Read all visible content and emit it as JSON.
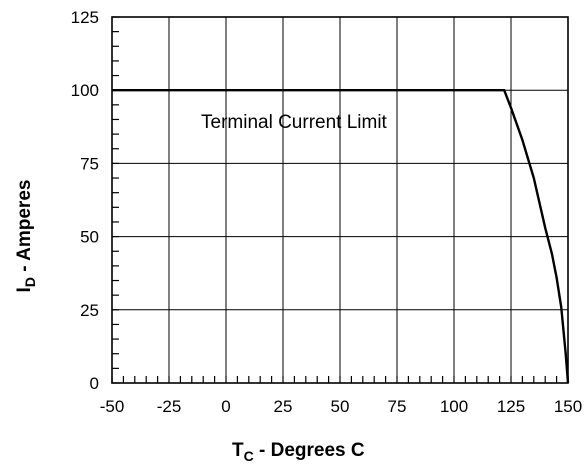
{
  "chart_data": {
    "type": "line",
    "xlabel": {
      "main": "T",
      "sub": "C",
      "rest": " - Degrees C"
    },
    "ylabel": {
      "main": "I",
      "sub": "D",
      "rest": " - Amperes"
    },
    "xlim": [
      -50,
      150
    ],
    "ylim": [
      0,
      125
    ],
    "xticks": [
      -50,
      -25,
      0,
      25,
      50,
      75,
      100,
      125,
      150
    ],
    "yticks": [
      0,
      25,
      50,
      75,
      100,
      125
    ],
    "x_minor_step": 5,
    "y_minor_step": 5,
    "grid": true,
    "annotation": "Terminal Current Limit",
    "series": [
      {
        "x": [
          -50,
          122,
          125,
          130,
          135,
          140,
          143,
          145,
          147,
          149,
          150
        ],
        "y": [
          100,
          100,
          94,
          83,
          70,
          53,
          44,
          36,
          26,
          10,
          0
        ]
      }
    ]
  }
}
